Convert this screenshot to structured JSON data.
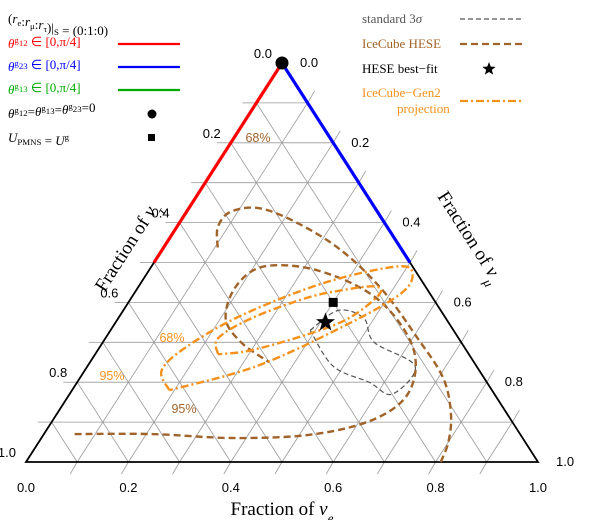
{
  "chart_data": {
    "type": "ternary",
    "axes": {
      "bottom": {
        "label": "Fraction of νe",
        "ticks": [
          "0.0",
          "0.2",
          "0.4",
          "0.6",
          "0.8",
          "1.0"
        ]
      },
      "left": {
        "label": "Fraction of ντ",
        "ticks": [
          "0.0",
          "0.2",
          "0.4",
          "0.6",
          "0.8",
          "1.0"
        ]
      },
      "right": {
        "label": "Fraction of νμ",
        "ticks": [
          "0.0",
          "0.2",
          "0.4",
          "0.6",
          "0.8",
          "1.0"
        ]
      }
    },
    "grid": true,
    "source_ratio": "(re:rμ:rτ)|S = (0:1:0)",
    "edge_segments": [
      {
        "name": "θg12 ∈ [0,π/4]",
        "color": "#ff0000",
        "points": [
          {
            "e": 0.0,
            "mu": 1.0,
            "tau": 0.0
          },
          {
            "e": 0.0,
            "mu": 0.5,
            "tau": 0.5
          }
        ]
      },
      {
        "name": "θg23 ∈ [0,π/4]",
        "color": "#0000ff",
        "points": [
          {
            "e": 0.0,
            "mu": 1.0,
            "tau": 0.0
          },
          {
            "e": 0.5,
            "mu": 0.5,
            "tau": 0.0
          }
        ]
      },
      {
        "name": "θg13 ∈ [0,π/4]",
        "color": "#00aa00",
        "points": [
          {
            "e": 0.0,
            "mu": 1.0,
            "tau": 0.0
          },
          {
            "e": 0.0,
            "mu": 1.0,
            "tau": 0.0
          }
        ]
      }
    ],
    "markers": [
      {
        "name": "θg12=θg13=θg23=0",
        "shape": "circle",
        "e": 0.0,
        "mu": 1.0,
        "tau": 0.0
      },
      {
        "name": "UPMNS = Ug",
        "shape": "square",
        "e": 0.4,
        "mu": 0.4,
        "tau": 0.2
      },
      {
        "name": "HESE best−fit",
        "shape": "star",
        "e": 0.41,
        "mu": 0.35,
        "tau": 0.24
      }
    ],
    "contours": [
      {
        "name": "standard 3σ",
        "color": "#555555",
        "style": "dashed",
        "points": [
          {
            "e": 0.39,
            "mu": 0.33,
            "tau": 0.28
          },
          {
            "e": 0.42,
            "mu": 0.38,
            "tau": 0.2
          },
          {
            "e": 0.48,
            "mu": 0.36,
            "tau": 0.16
          },
          {
            "e": 0.53,
            "mu": 0.3,
            "tau": 0.17
          },
          {
            "e": 0.64,
            "mu": 0.24,
            "tau": 0.12
          },
          {
            "e": 0.63,
            "mu": 0.17,
            "tau": 0.2
          },
          {
            "e": 0.57,
            "mu": 0.2,
            "tau": 0.23
          },
          {
            "e": 0.48,
            "mu": 0.24,
            "tau": 0.28
          },
          {
            "e": 0.39,
            "mu": 0.33,
            "tau": 0.28
          }
        ]
      },
      {
        "name": "IceCube HESE",
        "color": "#a0642a",
        "style": "dashed",
        "label": "95%",
        "points": [
          {
            "e": 0.81,
            "mu": 0.0,
            "tau": 0.19
          },
          {
            "e": 0.8,
            "mu": 0.05,
            "tau": 0.15
          },
          {
            "e": 0.77,
            "mu": 0.12,
            "tau": 0.11
          },
          {
            "e": 0.71,
            "mu": 0.21,
            "tau": 0.08
          },
          {
            "e": 0.61,
            "mu": 0.31,
            "tau": 0.08
          },
          {
            "e": 0.47,
            "mu": 0.44,
            "tau": 0.09
          },
          {
            "e": 0.32,
            "mu": 0.55,
            "tau": 0.13
          },
          {
            "e": 0.16,
            "mu": 0.63,
            "tau": 0.21
          },
          {
            "e": 0.09,
            "mu": 0.63,
            "tau": 0.28
          },
          {
            "e": 0.08,
            "mu": 0.59,
            "tau": 0.33
          },
          {
            "e": 0.11,
            "mu": 0.53,
            "tau": 0.36
          }
        ]
      },
      {
        "name": "",
        "color": "#a0642a",
        "style": "dashed",
        "label": "68%",
        "points": [
          {
            "e": 0.06,
            "mu": 0.07,
            "tau": 0.87
          },
          {
            "e": 0.21,
            "mu": 0.07,
            "tau": 0.72
          },
          {
            "e": 0.38,
            "mu": 0.06,
            "tau": 0.56
          },
          {
            "e": 0.53,
            "mu": 0.07,
            "tau": 0.4
          },
          {
            "e": 0.63,
            "mu": 0.11,
            "tau": 0.26
          },
          {
            "e": 0.66,
            "mu": 0.18,
            "tau": 0.16
          },
          {
            "e": 0.61,
            "mu": 0.29,
            "tau": 0.1
          },
          {
            "e": 0.48,
            "mu": 0.41,
            "tau": 0.11
          },
          {
            "e": 0.33,
            "mu": 0.48,
            "tau": 0.19
          },
          {
            "e": 0.22,
            "mu": 0.49,
            "tau": 0.29
          },
          {
            "e": 0.19,
            "mu": 0.44,
            "tau": 0.37
          },
          {
            "e": 0.21,
            "mu": 0.36,
            "tau": 0.43
          },
          {
            "e": 0.27,
            "mu": 0.3,
            "tau": 0.43
          },
          {
            "e": 0.35,
            "mu": 0.25,
            "tau": 0.4
          }
        ]
      },
      {
        "name": "IceCube−Gen2",
        "color": "#f5921e",
        "style": "dashdot",
        "label": "95%",
        "points": [
          {
            "e": 0.19,
            "mu": 0.18,
            "tau": 0.63
          },
          {
            "e": 0.15,
            "mu": 0.23,
            "tau": 0.62
          },
          {
            "e": 0.17,
            "mu": 0.29,
            "tau": 0.54
          },
          {
            "e": 0.24,
            "mu": 0.37,
            "tau": 0.39
          },
          {
            "e": 0.36,
            "mu": 0.45,
            "tau": 0.19
          },
          {
            "e": 0.48,
            "mu": 0.49,
            "tau": 0.03
          },
          {
            "e": 0.52,
            "mu": 0.47,
            "tau": 0.01
          },
          {
            "e": 0.52,
            "mu": 0.42,
            "tau": 0.06
          },
          {
            "e": 0.45,
            "mu": 0.34,
            "tau": 0.21
          },
          {
            "e": 0.33,
            "mu": 0.24,
            "tau": 0.43
          },
          {
            "e": 0.19,
            "mu": 0.18,
            "tau": 0.63
          }
        ]
      },
      {
        "name": "projection",
        "color": "#f5921e",
        "style": "dashdot",
        "label": "68%",
        "points": [
          {
            "e": 0.24,
            "mu": 0.27,
            "tau": 0.49
          },
          {
            "e": 0.22,
            "mu": 0.31,
            "tau": 0.47
          },
          {
            "e": 0.26,
            "mu": 0.36,
            "tau": 0.38
          },
          {
            "e": 0.34,
            "mu": 0.41,
            "tau": 0.25
          },
          {
            "e": 0.4,
            "mu": 0.43,
            "tau": 0.17
          },
          {
            "e": 0.46,
            "mu": 0.44,
            "tau": 0.1
          },
          {
            "e": 0.48,
            "mu": 0.42,
            "tau": 0.1
          },
          {
            "e": 0.45,
            "mu": 0.36,
            "tau": 0.19
          },
          {
            "e": 0.39,
            "mu": 0.32,
            "tau": 0.29
          },
          {
            "e": 0.3,
            "mu": 0.28,
            "tau": 0.42
          },
          {
            "e": 0.24,
            "mu": 0.27,
            "tau": 0.49
          }
        ]
      }
    ]
  }
}
